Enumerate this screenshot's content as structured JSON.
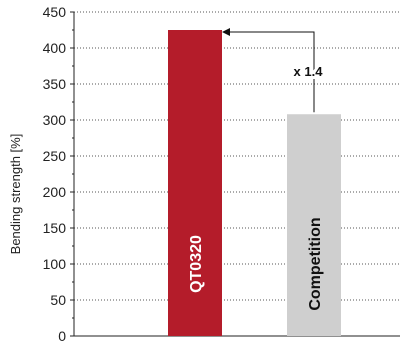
{
  "chart_data": {
    "type": "bar",
    "categories": [
      "QT0320",
      "Competition"
    ],
    "values": [
      425,
      308
    ],
    "colors": [
      "#b41c2a",
      "#cfcfcf"
    ],
    "label_colors": [
      "#ffffff",
      "#111111"
    ],
    "ylabel": "Bending strength [%]",
    "xlabel": "",
    "title": "",
    "ylim": [
      0,
      450
    ],
    "yticks": [
      "0",
      "50",
      "100",
      "150",
      "200",
      "250",
      "300",
      "350",
      "400",
      "450"
    ],
    "grid": true,
    "annotation": "x 1.4"
  }
}
